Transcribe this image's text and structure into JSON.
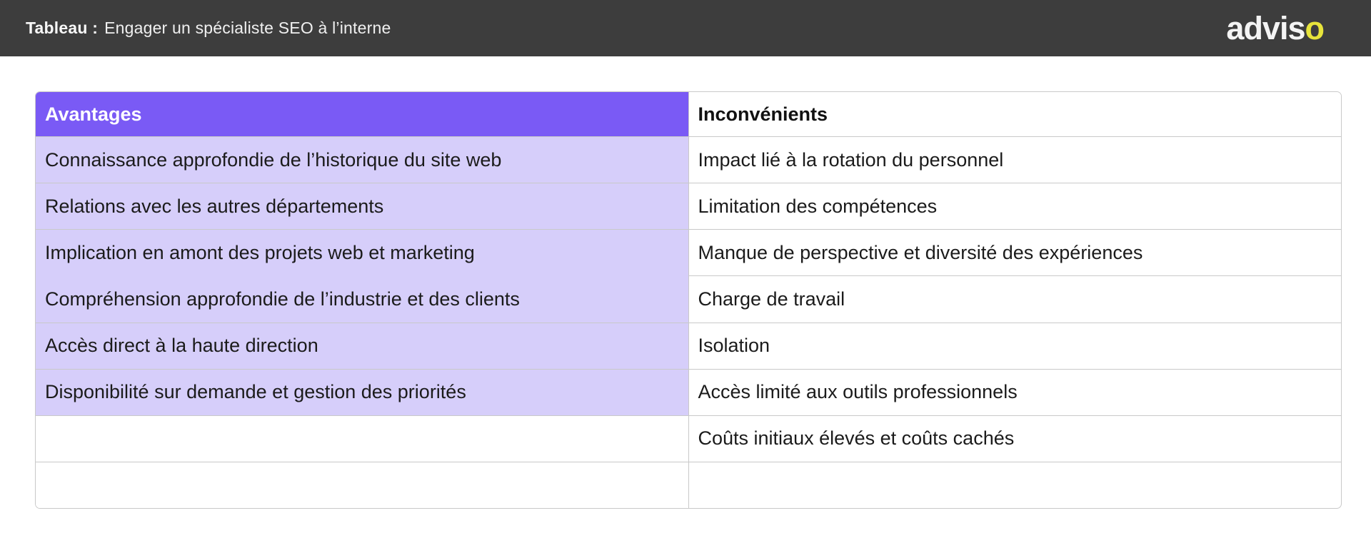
{
  "top_bar": {
    "title_prefix": "Tableau :",
    "title_text": "Engager un spécialiste SEO à l’interne",
    "logo_main": "advis",
    "logo_accent": "o"
  },
  "table": {
    "columns": [
      {
        "key": "avantages",
        "label": "Avantages"
      },
      {
        "key": "inconvenients",
        "label": "Inconvénients"
      }
    ],
    "rows": [
      {
        "avantage": "Connaissance approfondie de l’historique du site web",
        "inconvenient": "Impact lié à la rotation du personnel"
      },
      {
        "avantage": "Relations avec les autres départements",
        "inconvenient": "Limitation des compétences"
      },
      {
        "avantage": "Implication en amont des projets web et marketing",
        "inconvenient": "Manque de perspective et diversité des expériences"
      },
      {
        "avantage": "Compréhension approfondie de l’industrie et des clients",
        "inconvenient": "Charge de travail"
      },
      {
        "avantage": "Accès direct à la haute direction",
        "inconvenient": "Isolation"
      },
      {
        "avantage": "Disponibilité sur demande et gestion des priorités",
        "inconvenient": "Accès limité aux outils professionnels"
      },
      {
        "avantage": "",
        "inconvenient": "Coûts initiaux élevés et coûts cachés"
      },
      {
        "avantage": "",
        "inconvenient": ""
      }
    ]
  },
  "colors": {
    "top_bar_bg": "#3d3d3d",
    "header_purple": "#7a5af5",
    "cell_purple": "#d6cefa",
    "logo_accent_yellow": "#e7e43b",
    "border_gray": "#c9c9c9"
  }
}
